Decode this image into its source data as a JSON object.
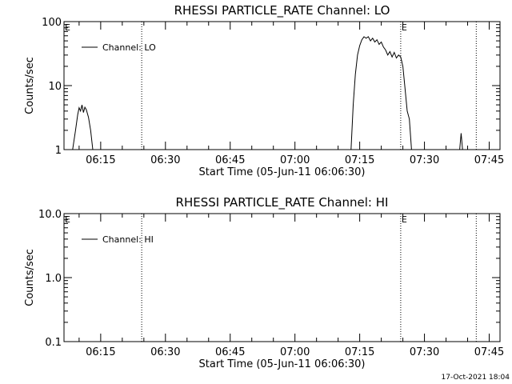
{
  "chart_data": [
    {
      "type": "line",
      "title": "RHESSI PARTICLE_RATE Channel: LO",
      "xlabel": "Start Time (05-Jun-11 06:06:30)",
      "ylabel": "Counts/sec",
      "yscale": "log",
      "ylim": [
        1,
        100
      ],
      "xlim": [
        "06:06:30",
        "07:47:30"
      ],
      "x_ticks": [
        "06:15",
        "06:30",
        "06:45",
        "07:00",
        "07:15",
        "07:30",
        "07:45"
      ],
      "y_ticks": [
        "1",
        "10",
        "100"
      ],
      "legend": {
        "label": "Channel: LO",
        "placement": "top-left"
      },
      "grid": false,
      "vlines": [
        "06:24:30",
        "07:24:30",
        "07:42:00"
      ],
      "markers": [
        {
          "label": "E",
          "x": "06:06:30"
        },
        {
          "label": "E",
          "x": "07:24:30"
        }
      ],
      "series": [
        {
          "name": "Channel: LO",
          "color": "#000000",
          "segments": [
            [
              [
                "06:08:30",
                1.0
              ],
              [
                "06:09:10",
                2.0
              ],
              [
                "06:09:40",
                3.5
              ],
              [
                "06:10:00",
                4.5
              ],
              [
                "06:10:20",
                4.0
              ],
              [
                "06:10:40",
                5.0
              ],
              [
                "06:11:00",
                3.8
              ],
              [
                "06:11:20",
                4.6
              ],
              [
                "06:11:40",
                4.2
              ],
              [
                "06:12:10",
                3.2
              ],
              [
                "06:12:40",
                2.0
              ],
              [
                "06:13:10",
                1.0
              ]
            ],
            [
              [
                "07:13:00",
                1.0
              ],
              [
                "07:13:30",
                5.0
              ],
              [
                "07:14:00",
                15.0
              ],
              [
                "07:14:30",
                30.0
              ],
              [
                "07:15:00",
                42.0
              ],
              [
                "07:15:30",
                52.0
              ],
              [
                "07:16:00",
                58.0
              ],
              [
                "07:16:30",
                55.0
              ],
              [
                "07:17:00",
                58.0
              ],
              [
                "07:17:30",
                50.0
              ],
              [
                "07:18:00",
                55.0
              ],
              [
                "07:18:30",
                48.0
              ],
              [
                "07:19:00",
                52.0
              ],
              [
                "07:19:30",
                44.0
              ],
              [
                "07:20:00",
                48.0
              ],
              [
                "07:20:30",
                40.0
              ],
              [
                "07:21:00",
                36.0
              ],
              [
                "07:21:30",
                30.0
              ],
              [
                "07:22:00",
                34.0
              ],
              [
                "07:22:30",
                28.0
              ],
              [
                "07:23:00",
                33.0
              ],
              [
                "07:23:30",
                27.0
              ],
              [
                "07:24:00",
                30.0
              ],
              [
                "07:24:30",
                28.0
              ],
              [
                "07:25:00",
                20.0
              ],
              [
                "07:25:30",
                9.0
              ],
              [
                "07:26:00",
                4.0
              ],
              [
                "07:26:30",
                3.0
              ],
              [
                "07:27:00",
                1.0
              ]
            ],
            [
              [
                "07:38:10",
                1.0
              ],
              [
                "07:38:30",
                1.8
              ],
              [
                "07:38:50",
                1.0
              ]
            ]
          ]
        }
      ]
    },
    {
      "type": "line",
      "title": "RHESSI PARTICLE_RATE Channel: HI",
      "xlabel": "Start Time (05-Jun-11 06:06:30)",
      "ylabel": "Counts/sec",
      "yscale": "log",
      "ylim": [
        0.1,
        10.0
      ],
      "xlim": [
        "06:06:30",
        "07:47:30"
      ],
      "x_ticks": [
        "06:15",
        "06:30",
        "06:45",
        "07:00",
        "07:15",
        "07:30",
        "07:45"
      ],
      "y_ticks": [
        "0.1",
        "1.0",
        "10.0"
      ],
      "legend": {
        "label": "Channel: HI",
        "placement": "top-left"
      },
      "grid": false,
      "vlines": [
        "06:24:30",
        "07:24:30",
        "07:42:00"
      ],
      "markers": [
        {
          "label": "E",
          "x": "06:06:30"
        },
        {
          "label": "E",
          "x": "07:24:30"
        }
      ],
      "series": [
        {
          "name": "Channel: HI",
          "color": "#000000",
          "segments": []
        }
      ]
    }
  ],
  "footer": {
    "timestamp": "17-Oct-2021 18:04"
  }
}
